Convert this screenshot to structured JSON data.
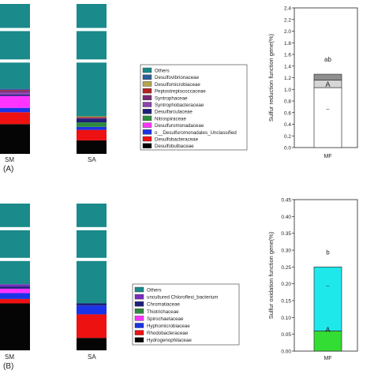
{
  "panels": [
    {
      "label": "(A)",
      "stack_chart": {
        "type": "stacked-bar",
        "categories": [
          "SM",
          "SA"
        ],
        "legend": [
          {
            "name": "Others",
            "color": "#1a8a8a"
          },
          {
            "name": "Desulfovibrionaceae",
            "color": "#2b5f9e"
          },
          {
            "name": "Desulfomicrobiaceae",
            "color": "#b3a64a"
          },
          {
            "name": "Peptostreptococcaceae",
            "color": "#b22222"
          },
          {
            "name": "Syntrophaceae",
            "color": "#7a2a73"
          },
          {
            "name": "Syntrophobacteraceae",
            "color": "#8e44ad"
          },
          {
            "name": "Desulfarculaceae",
            "color": "#1f1f7a"
          },
          {
            "name": "Nitrospiraceae",
            "color": "#2e8b3e"
          },
          {
            "name": "Desulfuromonadaceae",
            "color": "#ff33ff"
          },
          {
            "name": "o__Desulfuromonadales_Unclassified",
            "color": "#1a33e6"
          },
          {
            "name": "Desulfobacteraceae",
            "color": "#ee1111"
          },
          {
            "name": "Desulfobulbaceae",
            "color": "#050505"
          }
        ],
        "series_values": {
          "SM": [
            57,
            1,
            0,
            0.5,
            1,
            1.5,
            1,
            0,
            8,
            3,
            8,
            20
          ],
          "SA": [
            75,
            0,
            0.5,
            0.5,
            0.5,
            0,
            2.5,
            3,
            0,
            2,
            7,
            9
          ]
        }
      },
      "side_chart": {
        "type": "stacked-bar",
        "categories": [
          "MF"
        ],
        "ylabel": "Sulfur reduction function gene(%)",
        "ylim": [
          0,
          2.4
        ],
        "yticks": [
          "0.0",
          "0.2",
          "0.4",
          "0.6",
          "0.8",
          "1.0",
          "1.2",
          "1.4",
          "1.6",
          "1.8",
          "2.0",
          "2.2",
          "2.4"
        ],
        "segments": [
          {
            "value": 1.03,
            "color": "#ffffff"
          },
          {
            "value": 0.13,
            "color": "#d6d6d6"
          },
          {
            "value": 0.1,
            "color": "#8f8f8f"
          }
        ],
        "annotations": {
          "top": "ab",
          "mid": "A",
          "low": "–"
        }
      }
    },
    {
      "label": "(B)",
      "stack_chart": {
        "type": "stacked-bar",
        "categories": [
          "SM",
          "SA"
        ],
        "legend": [
          {
            "name": "Others",
            "color": "#1a8a8a"
          },
          {
            "name": "uncultured Chloroflexi_bacterium",
            "color": "#7b2cbf"
          },
          {
            "name": "Chromatiaceae",
            "color": "#1f1f7a"
          },
          {
            "name": "Thiotrichaceae",
            "color": "#2e8b3e"
          },
          {
            "name": "Spirochaetaceae",
            "color": "#ff33ff"
          },
          {
            "name": "Hyphomicrobiaceae",
            "color": "#1a33e6"
          },
          {
            "name": "Rhodobacteraceae",
            "color": "#ee1111"
          },
          {
            "name": "Hydrogenophilaceae",
            "color": "#050505"
          }
        ],
        "series_values": {
          "SM": [
            55,
            1.5,
            1.5,
            0,
            3,
            4,
            3,
            32
          ],
          "SA": [
            68,
            0,
            1.5,
            0,
            0,
            6,
            16,
            8.5
          ]
        }
      },
      "side_chart": {
        "type": "stacked-bar",
        "categories": [
          "MF"
        ],
        "ylabel": "Sulfur oxidation function gene(%)",
        "ylim": [
          0,
          0.45
        ],
        "yticks": [
          "0.00",
          "0.05",
          "0.10",
          "0.15",
          "0.20",
          "0.25",
          "0.30",
          "0.35",
          "0.40",
          "0.45"
        ],
        "segments": [
          {
            "value": 0.06,
            "color": "#33dd33"
          },
          {
            "value": 0.19,
            "color": "#1ee8ea"
          }
        ],
        "annotations": {
          "top": "b",
          "mid": "A",
          "low": "–"
        }
      }
    }
  ]
}
